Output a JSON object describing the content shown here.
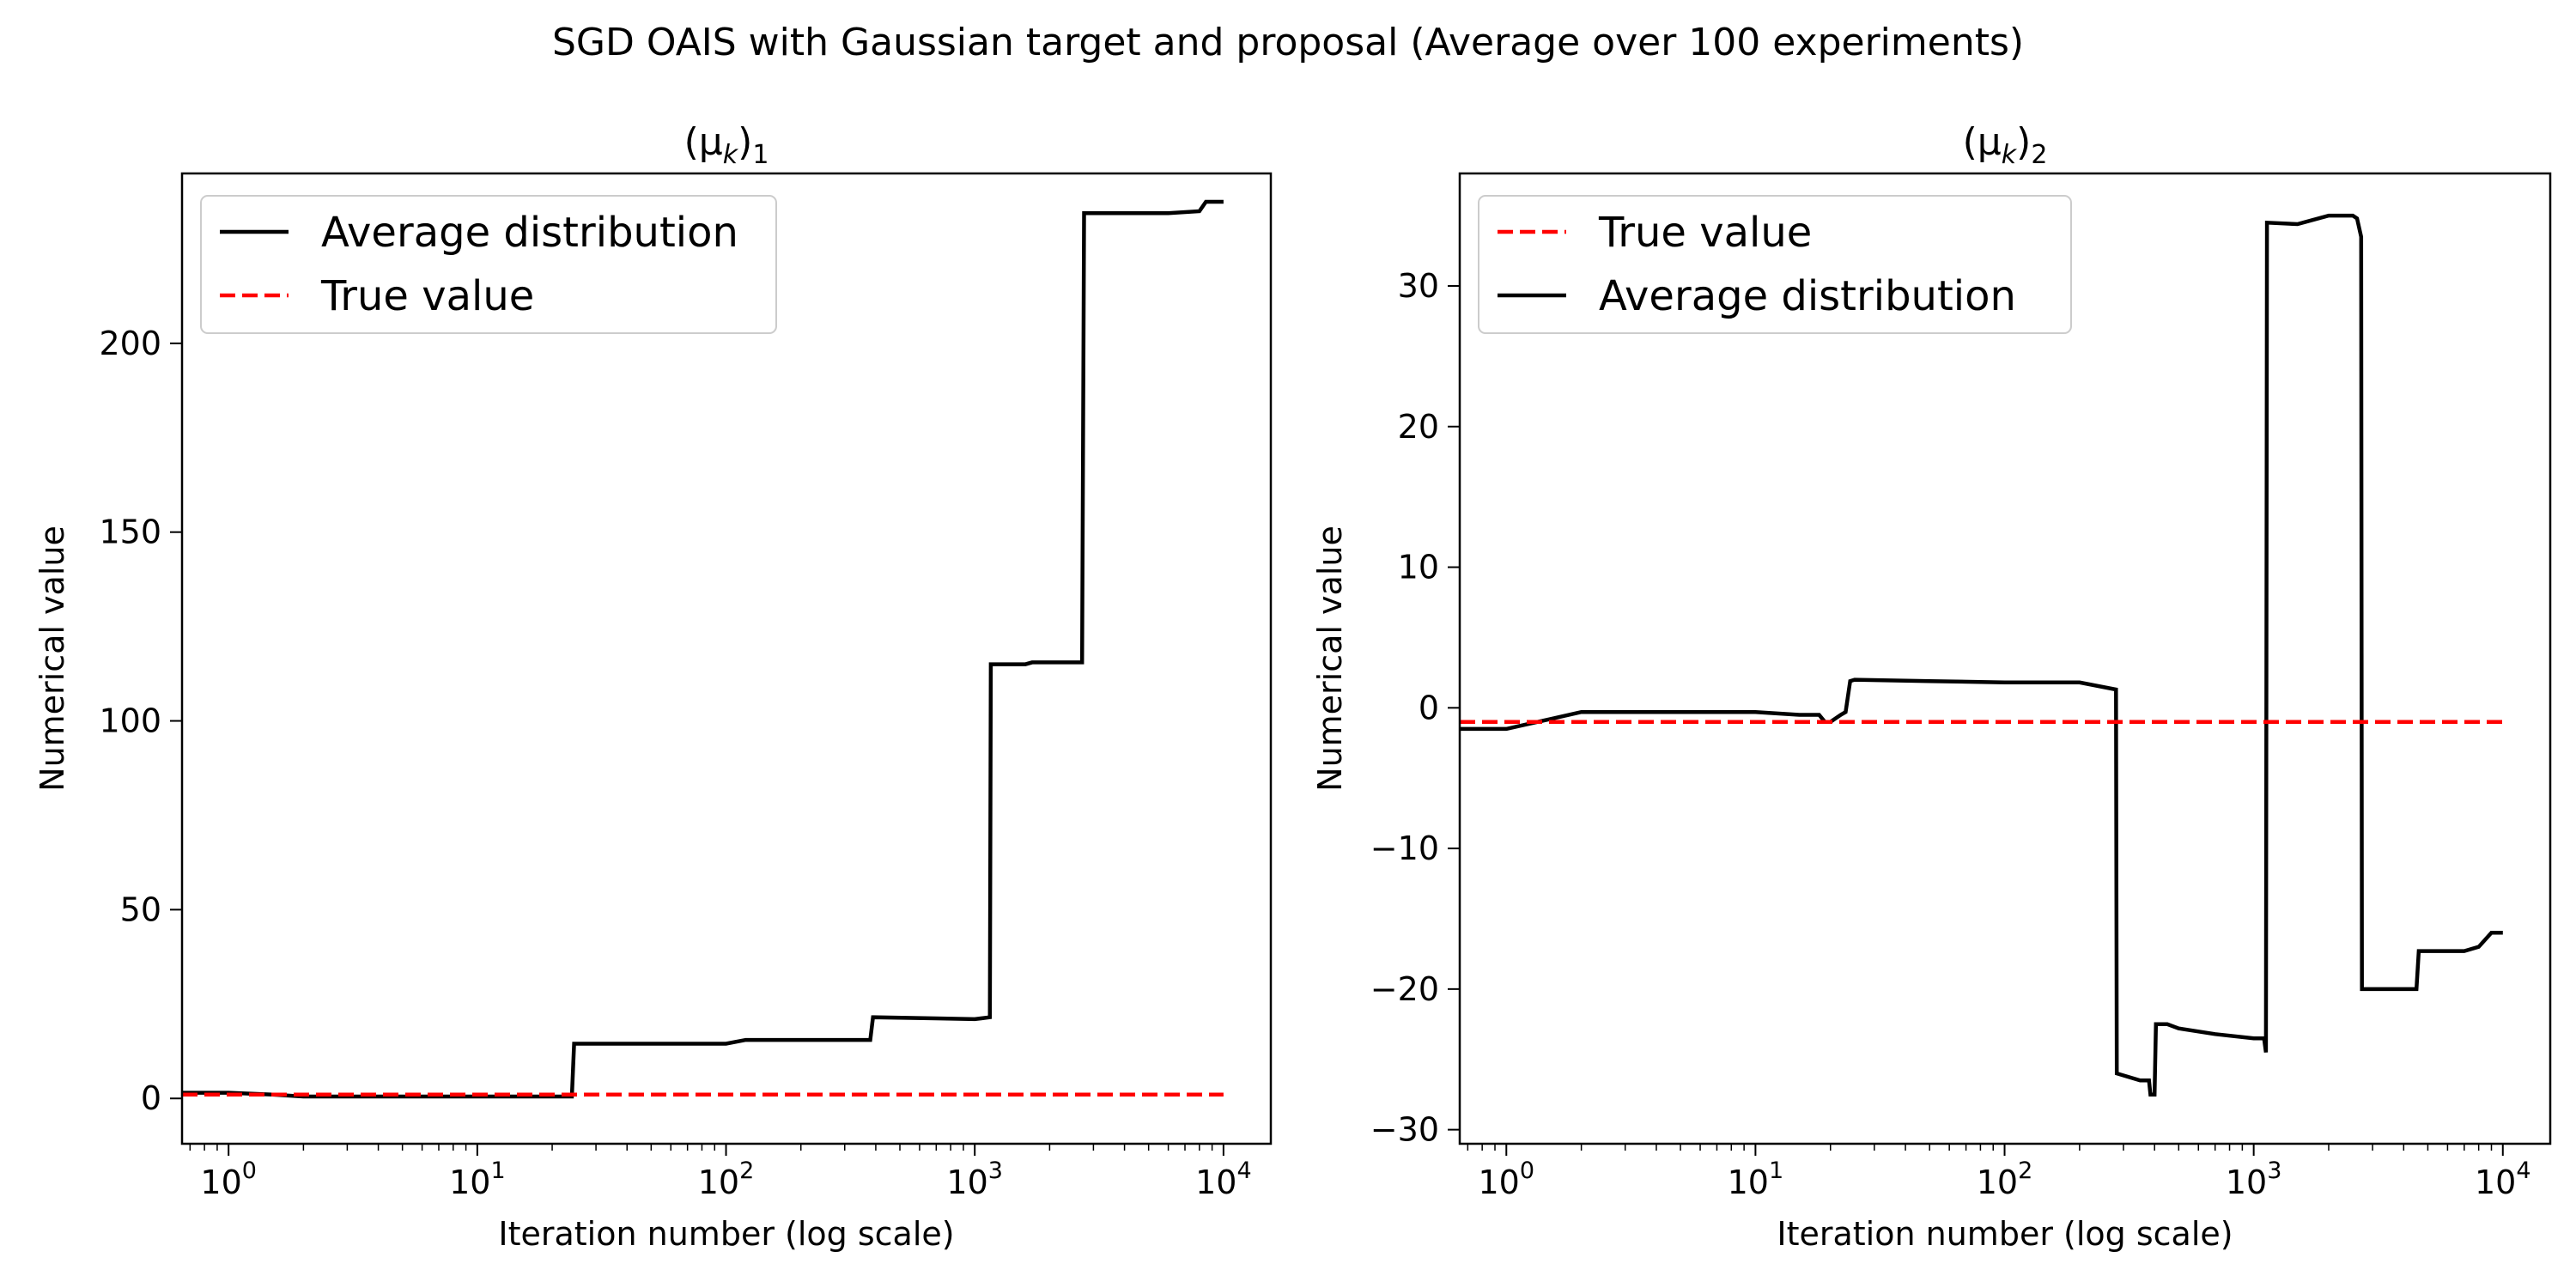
{
  "figure_title": "SGD OAIS with Gaussian target and proposal (Average over 100 experiments)",
  "colors": {
    "average": "#000000",
    "true_value": "#ff0000"
  },
  "chart_data": [
    {
      "type": "line",
      "title_base": "(μ",
      "title_sub1": "k",
      "title_mid": ")",
      "title_sub2": "1",
      "xlabel": "Iteration number (log scale)",
      "ylabel": "Numerical value",
      "xscale": "log",
      "xlim": [
        0.65,
        15500
      ],
      "ylim": [
        -12,
        245
      ],
      "x_ticks": [
        1,
        10,
        100,
        1000,
        10000
      ],
      "x_tick_exponents": [
        "0",
        "1",
        "2",
        "3",
        "4"
      ],
      "y_ticks": [
        0,
        50,
        100,
        150,
        200
      ],
      "grid": false,
      "legend_position": "top-left",
      "legend_order": [
        "Average distribution",
        "True value"
      ],
      "series": [
        {
          "name": "Average distribution",
          "style": "solid",
          "x": [
            0.65,
            1,
            1.5,
            2,
            5,
            10,
            20,
            24,
            24.5,
            60,
            100,
            120,
            200,
            380,
            390,
            700,
            1000,
            1150,
            1160,
            1600,
            1700,
            2700,
            2750,
            6000,
            8000,
            8500,
            10000
          ],
          "y": [
            1.5,
            1.5,
            1,
            0.5,
            0.5,
            0.5,
            0.5,
            0.5,
            14.5,
            14.5,
            14.5,
            15.5,
            15.5,
            15.5,
            21.5,
            21.2,
            21,
            21.5,
            115,
            115,
            115.5,
            115.5,
            234.5,
            234.5,
            235,
            237.5,
            237.5
          ]
        },
        {
          "name": "True value",
          "style": "dashed",
          "x": [
            0.65,
            10000
          ],
          "y": [
            1,
            1
          ]
        }
      ]
    },
    {
      "type": "line",
      "title_base": "(μ",
      "title_sub1": "k",
      "title_mid": ")",
      "title_sub2": "2",
      "xlabel": "Iteration number (log scale)",
      "ylabel": "Numerical value",
      "xscale": "log",
      "xlim": [
        0.65,
        15500
      ],
      "ylim": [
        -31,
        38
      ],
      "x_ticks": [
        1,
        10,
        100,
        1000,
        10000
      ],
      "x_tick_exponents": [
        "0",
        "1",
        "2",
        "3",
        "4"
      ],
      "y_ticks": [
        -30,
        -20,
        -10,
        0,
        10,
        20,
        30
      ],
      "grid": false,
      "legend_position": "top-left",
      "legend_order": [
        "True value",
        "Average distribution"
      ],
      "series": [
        {
          "name": "Average distribution",
          "style": "solid",
          "x": [
            0.65,
            1,
            1.5,
            2,
            5,
            10,
            15,
            18,
            19,
            20,
            22,
            23,
            24,
            25,
            50,
            100,
            200,
            280,
            282,
            350,
            380,
            385,
            400,
            405,
            450,
            500,
            700,
            1000,
            1100,
            1120,
            1130,
            1500,
            2000,
            2500,
            2600,
            2700,
            2720,
            4500,
            4600,
            7000,
            8000,
            9000,
            10000
          ],
          "y": [
            -1.5,
            -1.5,
            -0.8,
            -0.3,
            -0.3,
            -0.3,
            -0.5,
            -0.5,
            -1,
            -1,
            -0.5,
            -0.3,
            1.9,
            2,
            1.9,
            1.8,
            1.8,
            1.3,
            -26,
            -26.5,
            -26.5,
            -27.5,
            -27.5,
            -22.5,
            -22.5,
            -22.8,
            -23.2,
            -23.5,
            -23.5,
            -24.5,
            34.5,
            34.4,
            35,
            35,
            34.8,
            33.5,
            -20,
            -20,
            -17.3,
            -17.3,
            -17,
            -16,
            -16
          ]
        },
        {
          "name": "True value",
          "style": "dashed",
          "x": [
            0.65,
            10000
          ],
          "y": [
            -1,
            -1
          ]
        }
      ]
    }
  ]
}
